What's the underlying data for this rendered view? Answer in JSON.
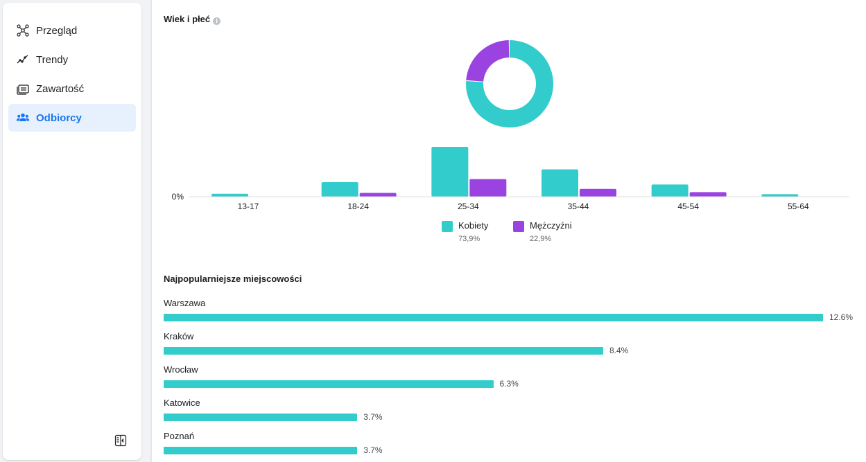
{
  "sidebar": {
    "items": [
      {
        "label": "Przegląd",
        "icon": "network-icon",
        "active": false
      },
      {
        "label": "Trendy",
        "icon": "trend-line-icon",
        "active": false
      },
      {
        "label": "Zawartość",
        "icon": "content-cards-icon",
        "active": false
      },
      {
        "label": "Odbiorcy",
        "icon": "people-icon",
        "active": true
      }
    ],
    "collapse_icon": "collapse-panel-icon"
  },
  "age_gender": {
    "title": "Wiek i płeć",
    "info_icon": "info-icon",
    "colors": {
      "women": "#33cccc",
      "men": "#9b43e0"
    },
    "legend": [
      {
        "label": "Kobiety",
        "value": "73,9%"
      },
      {
        "label": "Mężczyźni",
        "value": "22,9%"
      }
    ],
    "zero_label": "0%"
  },
  "chart_data": {
    "type": "bar",
    "categories": [
      "13-17",
      "18-24",
      "25-34",
      "35-44",
      "45-54",
      "55-64"
    ],
    "series": [
      {
        "name": "Kobiety",
        "values": [
          1.4,
          6.9,
          23.7,
          13.0,
          5.8,
          1.2
        ]
      },
      {
        "name": "Mężczyźni",
        "values": [
          0,
          1.8,
          8.4,
          3.7,
          2.2,
          0
        ]
      }
    ],
    "donut": [
      {
        "name": "Kobiety",
        "value": 73.9
      },
      {
        "name": "Mężczyźni",
        "value": 22.9
      }
    ],
    "grid": false,
    "legend_position": "bottom"
  },
  "cities": {
    "title": "Najpopularniejsze miejscowości",
    "items": [
      {
        "name": "Warszawa",
        "value": 12.6,
        "label": "12.6%"
      },
      {
        "name": "Kraków",
        "value": 8.4,
        "label": "8.4%"
      },
      {
        "name": "Wrocław",
        "value": 6.3,
        "label": "6.3%"
      },
      {
        "name": "Katowice",
        "value": 3.7,
        "label": "3.7%"
      },
      {
        "name": "Poznań",
        "value": 3.7,
        "label": "3.7%"
      }
    ]
  }
}
